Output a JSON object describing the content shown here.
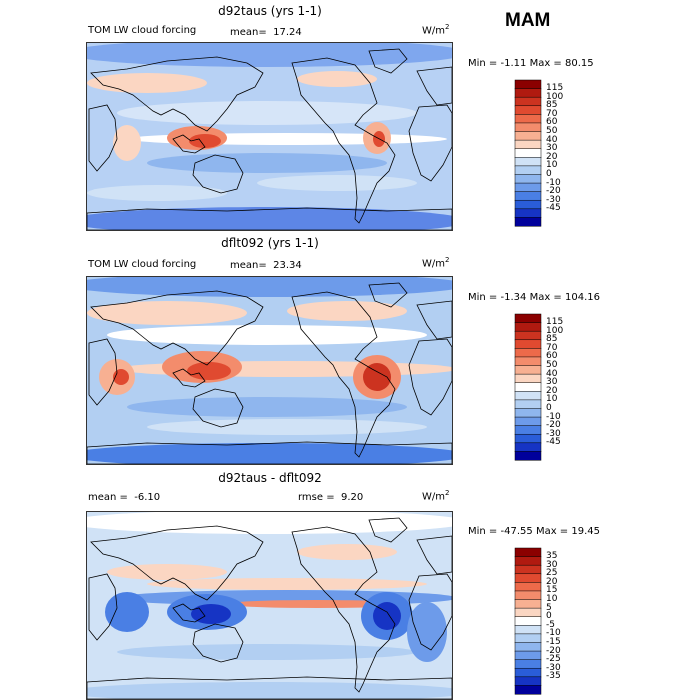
{
  "season": "MAM",
  "panels": [
    {
      "title": "d92taus (yrs 1-1)",
      "left_label": "TOM LW cloud forcing",
      "stat_label": "mean=",
      "stat_value": "17.24",
      "stat2_label": "",
      "stat2_value": "",
      "units": "W/m",
      "units_sup": "2",
      "min_label": "Min =",
      "min_value": "-1.11",
      "max_label": "Max =",
      "max_value": "80.15",
      "colorbar": {
        "levels": [
          "115",
          "100",
          "85",
          "70",
          "60",
          "50",
          "40",
          "30",
          "20",
          "10",
          "0",
          "-10",
          "-20",
          "-30",
          "-45"
        ],
        "colors": [
          "#8b0000",
          "#b01a10",
          "#cc3320",
          "#e04a30",
          "#ed6a4a",
          "#f38c6c",
          "#f7b092",
          "#fbd6c2",
          "#ffffff",
          "#d0e2f6",
          "#b2cff2",
          "#8fb6ee",
          "#6d9bea",
          "#4a7fe4",
          "#2a5dd9",
          "#1634c4",
          "#00009b"
        ]
      },
      "chart_data": {
        "type": "heatmap",
        "title": "d92taus (yrs 1-1)",
        "field": "TOM LW cloud forcing",
        "units": "W/m2",
        "mean": 17.24,
        "min": -1.11,
        "max": 80.15
      }
    },
    {
      "title": "dflt092 (yrs 1-1)",
      "left_label": "TOM LW cloud forcing",
      "stat_label": "mean=",
      "stat_value": "23.34",
      "stat2_label": "",
      "stat2_value": "",
      "units": "W/m",
      "units_sup": "2",
      "min_label": "Min =",
      "min_value": "-1.34",
      "max_label": "Max =",
      "max_value": "104.16",
      "colorbar": {
        "levels": [
          "115",
          "100",
          "85",
          "70",
          "60",
          "50",
          "40",
          "30",
          "20",
          "10",
          "0",
          "-10",
          "-20",
          "-30",
          "-45"
        ],
        "colors": [
          "#8b0000",
          "#b01a10",
          "#cc3320",
          "#e04a30",
          "#ed6a4a",
          "#f38c6c",
          "#f7b092",
          "#fbd6c2",
          "#ffffff",
          "#d0e2f6",
          "#b2cff2",
          "#8fb6ee",
          "#6d9bea",
          "#4a7fe4",
          "#2a5dd9",
          "#1634c4",
          "#00009b"
        ]
      },
      "chart_data": {
        "type": "heatmap",
        "title": "dflt092 (yrs 1-1)",
        "field": "TOM LW cloud forcing",
        "units": "W/m2",
        "mean": 23.34,
        "min": -1.34,
        "max": 104.16
      }
    },
    {
      "title": "d92taus - dflt092",
      "left_label": "",
      "stat_label": "mean =",
      "stat_value": "-6.10",
      "stat2_label": "rmse =",
      "stat2_value": "9.20",
      "units": "W/m",
      "units_sup": "2",
      "min_label": "Min =",
      "min_value": "-47.55",
      "max_label": "Max =",
      "max_value": "19.45",
      "colorbar": {
        "levels": [
          "35",
          "30",
          "25",
          "20",
          "15",
          "10",
          "5",
          "0",
          "-5",
          "-10",
          "-15",
          "-20",
          "-25",
          "-30",
          "-35"
        ],
        "colors": [
          "#8b0000",
          "#b01a10",
          "#cc3320",
          "#e04a30",
          "#ed6a4a",
          "#f38c6c",
          "#f7b092",
          "#fbd6c2",
          "#ffffff",
          "#d0e2f6",
          "#b2cff2",
          "#8fb6ee",
          "#6d9bea",
          "#4a7fe4",
          "#2a5dd9",
          "#1634c4",
          "#00009b"
        ]
      },
      "chart_data": {
        "type": "heatmap",
        "title": "d92taus - dflt092",
        "field": "difference",
        "units": "W/m2",
        "mean": -6.1,
        "rmse": 9.2,
        "min": -47.55,
        "max": 19.45
      }
    }
  ]
}
